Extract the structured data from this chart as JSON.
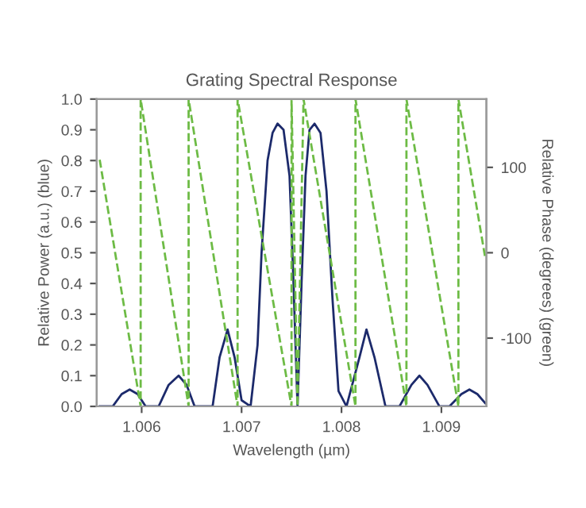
{
  "chart_data": {
    "type": "line",
    "title": "Grating Spectral Response",
    "xlabel": "Wavelength (µm)",
    "ylabel": "Relative Power (a.u.) (blue)",
    "y2label": "Relative Phase (degrees) (green)",
    "xlim": [
      1.00555,
      1.00945
    ],
    "xticks": [
      {
        "value": 1.006,
        "label": "1.006"
      },
      {
        "value": 1.007,
        "label": "1.007"
      },
      {
        "value": 1.008,
        "label": "1.008"
      },
      {
        "value": 1.009,
        "label": "1.009"
      }
    ],
    "ylim": [
      0,
      1
    ],
    "yticks": [
      {
        "value": 0,
        "label": "0.0"
      },
      {
        "value": 0.1,
        "label": "0.1"
      },
      {
        "value": 0.2,
        "label": "0.2"
      },
      {
        "value": 0.3,
        "label": "0.3"
      },
      {
        "value": 0.4,
        "label": "0.4"
      },
      {
        "value": 0.5,
        "label": "0.5"
      },
      {
        "value": 0.6,
        "label": "0.6"
      },
      {
        "value": 0.7,
        "label": "0.7"
      },
      {
        "value": 0.8,
        "label": "0.8"
      },
      {
        "value": 0.9,
        "label": "0.9"
      },
      {
        "value": 1,
        "label": "1.0"
      }
    ],
    "y2lim": [
      -180,
      180
    ],
    "y2ticks": [
      -100,
      0,
      100
    ],
    "grid": false,
    "legend": false,
    "series": [
      {
        "color": "#1c2a6b",
        "line_style": "solid",
        "x": [
          1.00558,
          1.00571,
          1.0058,
          1.00588,
          1.00596,
          1.00604,
          1.00617,
          1.00627,
          1.00637,
          1.00645,
          1.00653,
          1.00671,
          1.00678,
          1.00686,
          1.00693,
          1.007,
          1.00709,
          1.00716,
          1.0072,
          1.00726,
          1.00731,
          1.00736,
          1.00742,
          1.00748,
          1.00752,
          1.00756,
          1.0076,
          1.00764,
          1.00768,
          1.00773,
          1.00779,
          1.00785,
          1.00791,
          1.00797,
          1.00805,
          1.00818,
          1.00825,
          1.00833,
          1.00844,
          1.00858,
          1.0087,
          1.00878,
          1.00886,
          1.00898,
          1.00908,
          1.0092,
          1.00928,
          1.00936,
          1.00944
        ],
        "values": [
          0,
          0,
          0.04,
          0.055,
          0.04,
          0,
          0,
          0.07,
          0.1,
          0.07,
          0,
          0,
          0.16,
          0.25,
          0.16,
          0.02,
          0,
          0.2,
          0.5,
          0.8,
          0.89,
          0.92,
          0.9,
          0.75,
          0.4,
          0,
          0.4,
          0.75,
          0.9,
          0.92,
          0.89,
          0.7,
          0.35,
          0.05,
          0,
          0.16,
          0.25,
          0.16,
          0,
          0,
          0.07,
          0.1,
          0.07,
          0,
          0,
          0.04,
          0.055,
          0.04,
          0.01
        ]
      },
      {
        "color": "#6dbb45",
        "line_style": "dashed",
        "axis": "y2",
        "x": [
          1.00558,
          1.00599,
          1.00599,
          1.00647,
          1.00647,
          1.00696,
          1.00696,
          1.0075,
          1.0075,
          1.00756,
          1.00762,
          1.00814,
          1.00814,
          1.00865,
          1.00865,
          1.00917,
          1.00917,
          1.00944
        ],
        "values": [
          109,
          -180,
          180,
          -180,
          180,
          -180,
          180,
          -180,
          180,
          -180,
          180,
          -180,
          180,
          -180,
          180,
          -180,
          180,
          -7
        ]
      }
    ]
  }
}
